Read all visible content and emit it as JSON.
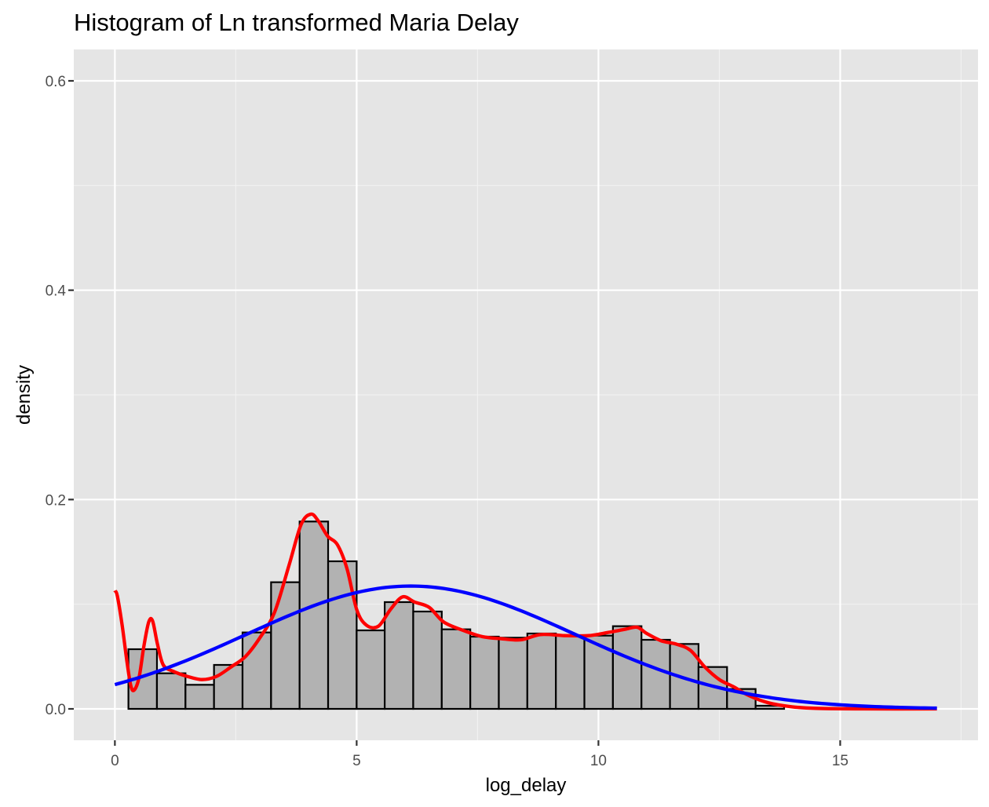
{
  "chart_data": {
    "type": "bar",
    "title": "Histogram of Ln transformed Maria Delay",
    "xlabel": "log_delay",
    "ylabel": "density",
    "xlim": [
      -0.85,
      17.85
    ],
    "ylim": [
      -0.03,
      0.63
    ],
    "xticks": [
      0,
      5,
      10,
      15
    ],
    "xtick_labels": [
      "0",
      "5",
      "10",
      "15"
    ],
    "yticks": [
      0.0,
      0.2,
      0.4,
      0.6
    ],
    "ytick_labels": [
      "0.0",
      "0.2",
      "0.4",
      "0.6"
    ],
    "grid": true,
    "bins": [
      {
        "x0": 0.28,
        "x1": 0.87,
        "value": 0.057
      },
      {
        "x0": 0.87,
        "x1": 1.46,
        "value": 0.034
      },
      {
        "x0": 1.46,
        "x1": 2.05,
        "value": 0.023
      },
      {
        "x0": 2.05,
        "x1": 2.64,
        "value": 0.042
      },
      {
        "x0": 2.64,
        "x1": 3.23,
        "value": 0.073
      },
      {
        "x0": 3.23,
        "x1": 3.82,
        "value": 0.121
      },
      {
        "x0": 3.82,
        "x1": 4.41,
        "value": 0.179
      },
      {
        "x0": 4.41,
        "x1": 5.0,
        "value": 0.141
      },
      {
        "x0": 5.0,
        "x1": 5.58,
        "value": 0.075
      },
      {
        "x0": 5.58,
        "x1": 6.17,
        "value": 0.102
      },
      {
        "x0": 6.17,
        "x1": 6.76,
        "value": 0.093
      },
      {
        "x0": 6.76,
        "x1": 7.35,
        "value": 0.076
      },
      {
        "x0": 7.35,
        "x1": 7.94,
        "value": 0.069
      },
      {
        "x0": 7.94,
        "x1": 8.53,
        "value": 0.068
      },
      {
        "x0": 8.53,
        "x1": 9.12,
        "value": 0.072
      },
      {
        "x0": 9.12,
        "x1": 9.71,
        "value": 0.07
      },
      {
        "x0": 9.71,
        "x1": 10.3,
        "value": 0.07
      },
      {
        "x0": 10.3,
        "x1": 10.89,
        "value": 0.079
      },
      {
        "x0": 10.89,
        "x1": 11.48,
        "value": 0.066
      },
      {
        "x0": 11.48,
        "x1": 12.07,
        "value": 0.062
      },
      {
        "x0": 12.07,
        "x1": 12.66,
        "value": 0.04
      },
      {
        "x0": 12.66,
        "x1": 13.25,
        "value": 0.019
      },
      {
        "x0": 13.25,
        "x1": 13.84,
        "value": 0.003
      }
    ],
    "series": [
      {
        "type": "line",
        "color": "#ff0000",
        "points": [
          [
            0.0,
            0.113
          ],
          [
            0.05,
            0.108
          ],
          [
            0.15,
            0.08
          ],
          [
            0.25,
            0.045
          ],
          [
            0.33,
            0.022
          ],
          [
            0.4,
            0.018
          ],
          [
            0.5,
            0.03
          ],
          [
            0.6,
            0.06
          ],
          [
            0.7,
            0.083
          ],
          [
            0.78,
            0.084
          ],
          [
            0.88,
            0.062
          ],
          [
            1.0,
            0.042
          ],
          [
            1.2,
            0.036
          ],
          [
            1.5,
            0.031
          ],
          [
            1.8,
            0.028
          ],
          [
            2.1,
            0.031
          ],
          [
            2.4,
            0.04
          ],
          [
            2.7,
            0.05
          ],
          [
            3.0,
            0.068
          ],
          [
            3.3,
            0.092
          ],
          [
            3.6,
            0.137
          ],
          [
            3.85,
            0.176
          ],
          [
            4.05,
            0.186
          ],
          [
            4.2,
            0.18
          ],
          [
            4.4,
            0.165
          ],
          [
            4.6,
            0.157
          ],
          [
            4.8,
            0.134
          ],
          [
            5.0,
            0.095
          ],
          [
            5.2,
            0.08
          ],
          [
            5.45,
            0.079
          ],
          [
            5.7,
            0.095
          ],
          [
            5.95,
            0.107
          ],
          [
            6.2,
            0.102
          ],
          [
            6.5,
            0.097
          ],
          [
            6.8,
            0.083
          ],
          [
            7.2,
            0.075
          ],
          [
            7.6,
            0.069
          ],
          [
            8.0,
            0.067
          ],
          [
            8.4,
            0.066
          ],
          [
            8.8,
            0.071
          ],
          [
            9.3,
            0.07
          ],
          [
            9.8,
            0.07
          ],
          [
            10.2,
            0.073
          ],
          [
            10.55,
            0.076
          ],
          [
            10.8,
            0.078
          ],
          [
            11.0,
            0.072
          ],
          [
            11.3,
            0.065
          ],
          [
            11.6,
            0.062
          ],
          [
            11.9,
            0.056
          ],
          [
            12.2,
            0.04
          ],
          [
            12.5,
            0.028
          ],
          [
            12.8,
            0.021
          ],
          [
            13.1,
            0.013
          ],
          [
            13.5,
            0.006
          ],
          [
            14.0,
            0.002
          ],
          [
            14.5,
            0.0005
          ],
          [
            15.5,
            0.0
          ],
          [
            17.0,
            0.0
          ]
        ]
      },
      {
        "type": "line",
        "color": "#0000ff",
        "distribution": "normal",
        "mean": 6.12,
        "sd": 3.4,
        "x_range": [
          0.0,
          17.0
        ]
      }
    ]
  }
}
